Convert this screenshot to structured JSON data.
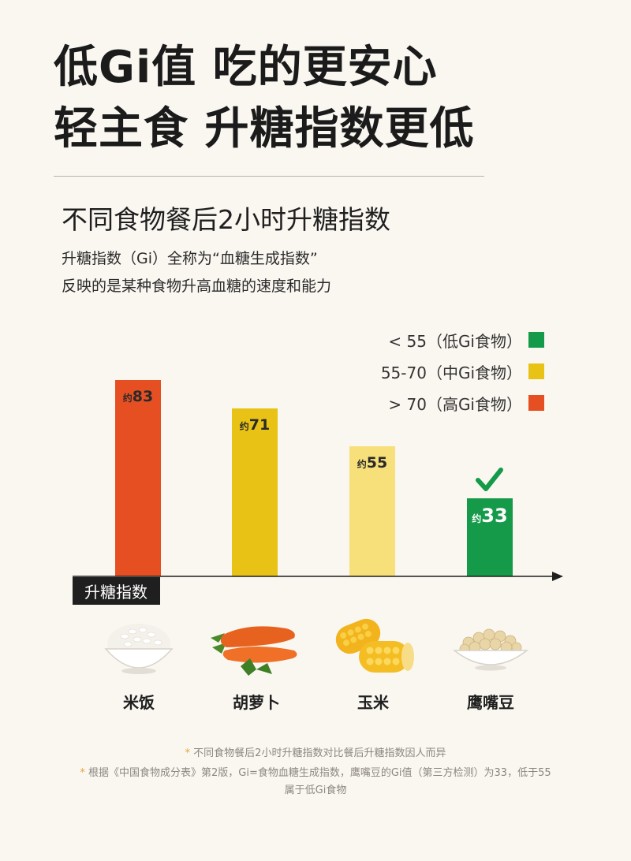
{
  "header": {
    "title_line1": "低Gi值 吃的更安心",
    "title_line2": "轻主食 升糖指数更低"
  },
  "section": {
    "subtitle": "不同食物餐后2小时升糖指数",
    "desc_line1": "升糖指数（Gi）全称为“血糖生成指数”",
    "desc_line2": "反映的是某种食物升高血糖的速度和能力"
  },
  "legend": [
    {
      "label": "< 55（低Gi食物）",
      "color": "#159a4a"
    },
    {
      "label": "55-70（中Gi食物）",
      "color": "#e8c316"
    },
    {
      "label": "> 70（高Gi食物）",
      "color": "#e64f22"
    }
  ],
  "chart_data": {
    "type": "bar",
    "categories": [
      "米饭",
      "胡萝卜",
      "玉米",
      "鹰嘴豆"
    ],
    "values": [
      83,
      71,
      55,
      33
    ],
    "value_prefix": "约",
    "colors": [
      "#e64f22",
      "#e8c316",
      "#f7e07a",
      "#159a4a"
    ],
    "axis_label": "升糖指数",
    "highlight": "鹰嘴豆"
  },
  "notes": {
    "star": "*",
    "line1": "不同食物餐后2小时升糖指数对比餐后升糖指数因人而异",
    "line2": "根据《中国食物成分表》第2版，Gi=食物血糖生成指数，鹰嘴豆的Gi值（第三方检测）为33，低于55",
    "line3": "属于低Gi食物"
  }
}
